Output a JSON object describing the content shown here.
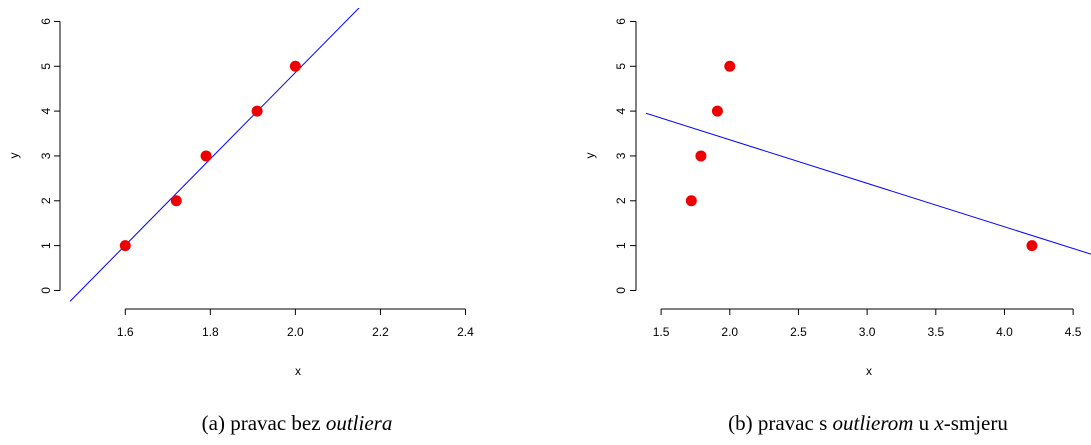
{
  "chart_data": [
    {
      "type": "scatter",
      "caption": {
        "prefix": "(a) pravac bez ",
        "emph": "outliera",
        "suffix": ""
      },
      "xlabel": "x",
      "ylabel": "y",
      "xlim": [
        1.47,
        2.54
      ],
      "ylim": [
        -0.28,
        6.3
      ],
      "xticks": [
        "1.6",
        "1.8",
        "2.0",
        "2.2",
        "2.4"
      ],
      "yticks": [
        "0",
        "1",
        "2",
        "3",
        "4",
        "5",
        "6"
      ],
      "points": [
        {
          "x": 1.6,
          "y": 1
        },
        {
          "x": 1.72,
          "y": 2
        },
        {
          "x": 1.79,
          "y": 3
        },
        {
          "x": 1.91,
          "y": 4
        },
        {
          "x": 2.0,
          "y": 5
        }
      ],
      "fit_line": {
        "intercept": -14.4,
        "slope": 9.63
      },
      "point_color": "#ee0000",
      "line_color": "#0000ff"
    },
    {
      "type": "scatter",
      "caption": {
        "prefix": "(b) pravac s ",
        "emph": "outlierom",
        "mid": " u ",
        "emph2": "x",
        "suffix": "-smjeru"
      },
      "xlabel": "x",
      "ylabel": "y",
      "xlim": [
        1.39,
        4.63
      ],
      "ylim": [
        -0.28,
        6.3
      ],
      "xticks": [
        "1.5",
        "2.0",
        "2.5",
        "3.0",
        "3.5",
        "4.0",
        "4.5"
      ],
      "yticks": [
        "0",
        "1",
        "2",
        "3",
        "4",
        "5",
        "6"
      ],
      "points": [
        {
          "x": 1.72,
          "y": 2
        },
        {
          "x": 1.79,
          "y": 3
        },
        {
          "x": 1.91,
          "y": 4
        },
        {
          "x": 2.0,
          "y": 5
        },
        {
          "x": 4.2,
          "y": 1
        }
      ],
      "fit_line": {
        "intercept": 5.3,
        "slope": -0.97
      },
      "point_color": "#ee0000",
      "line_color": "#0000ff"
    }
  ]
}
